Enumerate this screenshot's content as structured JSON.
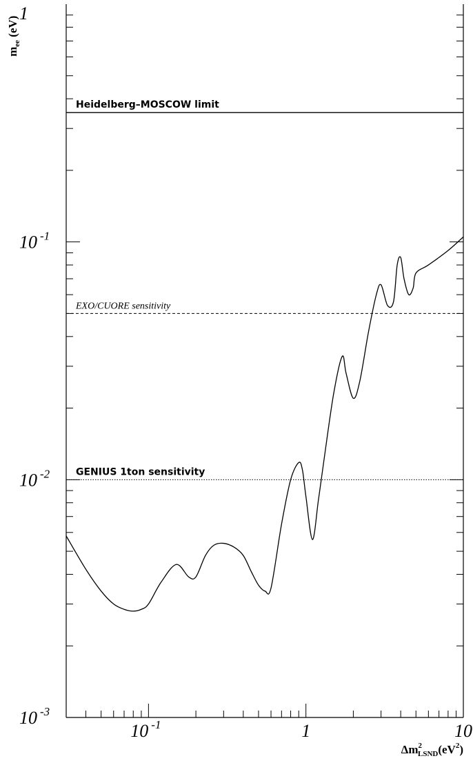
{
  "chart_data": {
    "type": "line",
    "xscale": "log",
    "yscale": "log",
    "xlim": [
      0.03,
      10
    ],
    "ylim": [
      0.001,
      1
    ],
    "grid": false,
    "xlabel": {
      "base": "Δm",
      "sup": "2",
      "sub": "LSND",
      "unit": "(eV",
      "unit_sup": "2",
      "close": ")"
    },
    "ylabel": {
      "base": "m",
      "sub": "ee",
      "unit": " (eV)"
    },
    "x_ticks": [
      {
        "value": 0.1,
        "mantissa": "10",
        "exponent": "-1"
      },
      {
        "value": 1,
        "mantissa": "1",
        "exponent": ""
      },
      {
        "value": 10,
        "mantissa": "10",
        "exponent": ""
      }
    ],
    "y_ticks": [
      {
        "value": 0.001,
        "mantissa": "10",
        "exponent": "-3"
      },
      {
        "value": 0.01,
        "mantissa": "10",
        "exponent": "-2"
      },
      {
        "value": 0.1,
        "mantissa": "10",
        "exponent": "-1"
      },
      {
        "value": 1,
        "mantissa": "1",
        "exponent": ""
      }
    ],
    "reference_lines": [
      {
        "label": "Heidelberg–MOSCOW limit",
        "y": 0.35,
        "style": "solid",
        "font": "bold"
      },
      {
        "label": "EXO/CUORE sensitivity",
        "y": 0.05,
        "style": "dashed",
        "font": "italic"
      },
      {
        "label": "GENIUS 1ton sensitivity",
        "y": 0.01,
        "style": "dotted",
        "font": "bold"
      }
    ],
    "series": [
      {
        "x": [
          0.03,
          0.04,
          0.05,
          0.06,
          0.07,
          0.08,
          0.09,
          0.1,
          0.12,
          0.15,
          0.18,
          0.2,
          0.23,
          0.26,
          0.3,
          0.35,
          0.4,
          0.45,
          0.5,
          0.55,
          0.6,
          0.7,
          0.8,
          0.9,
          0.95,
          1.0,
          1.1,
          1.2,
          1.3,
          1.5,
          1.7,
          1.8,
          2.0,
          2.2,
          2.5,
          2.8,
          3.0,
          3.3,
          3.6,
          3.8,
          4.0,
          4.2,
          4.5,
          4.8,
          5.0,
          6.0,
          8.0,
          10.0
        ],
        "y": [
          0.0058,
          0.0042,
          0.0034,
          0.003,
          0.00285,
          0.0028,
          0.00285,
          0.003,
          0.0037,
          0.0044,
          0.0039,
          0.0039,
          0.0048,
          0.0053,
          0.0054,
          0.0052,
          0.0048,
          0.0041,
          0.0036,
          0.0034,
          0.0035,
          0.0065,
          0.01,
          0.0118,
          0.011,
          0.0085,
          0.0056,
          0.0082,
          0.012,
          0.023,
          0.033,
          0.028,
          0.022,
          0.026,
          0.042,
          0.06,
          0.066,
          0.054,
          0.056,
          0.08,
          0.086,
          0.07,
          0.06,
          0.064,
          0.074,
          0.08,
          0.092,
          0.105
        ]
      }
    ]
  }
}
